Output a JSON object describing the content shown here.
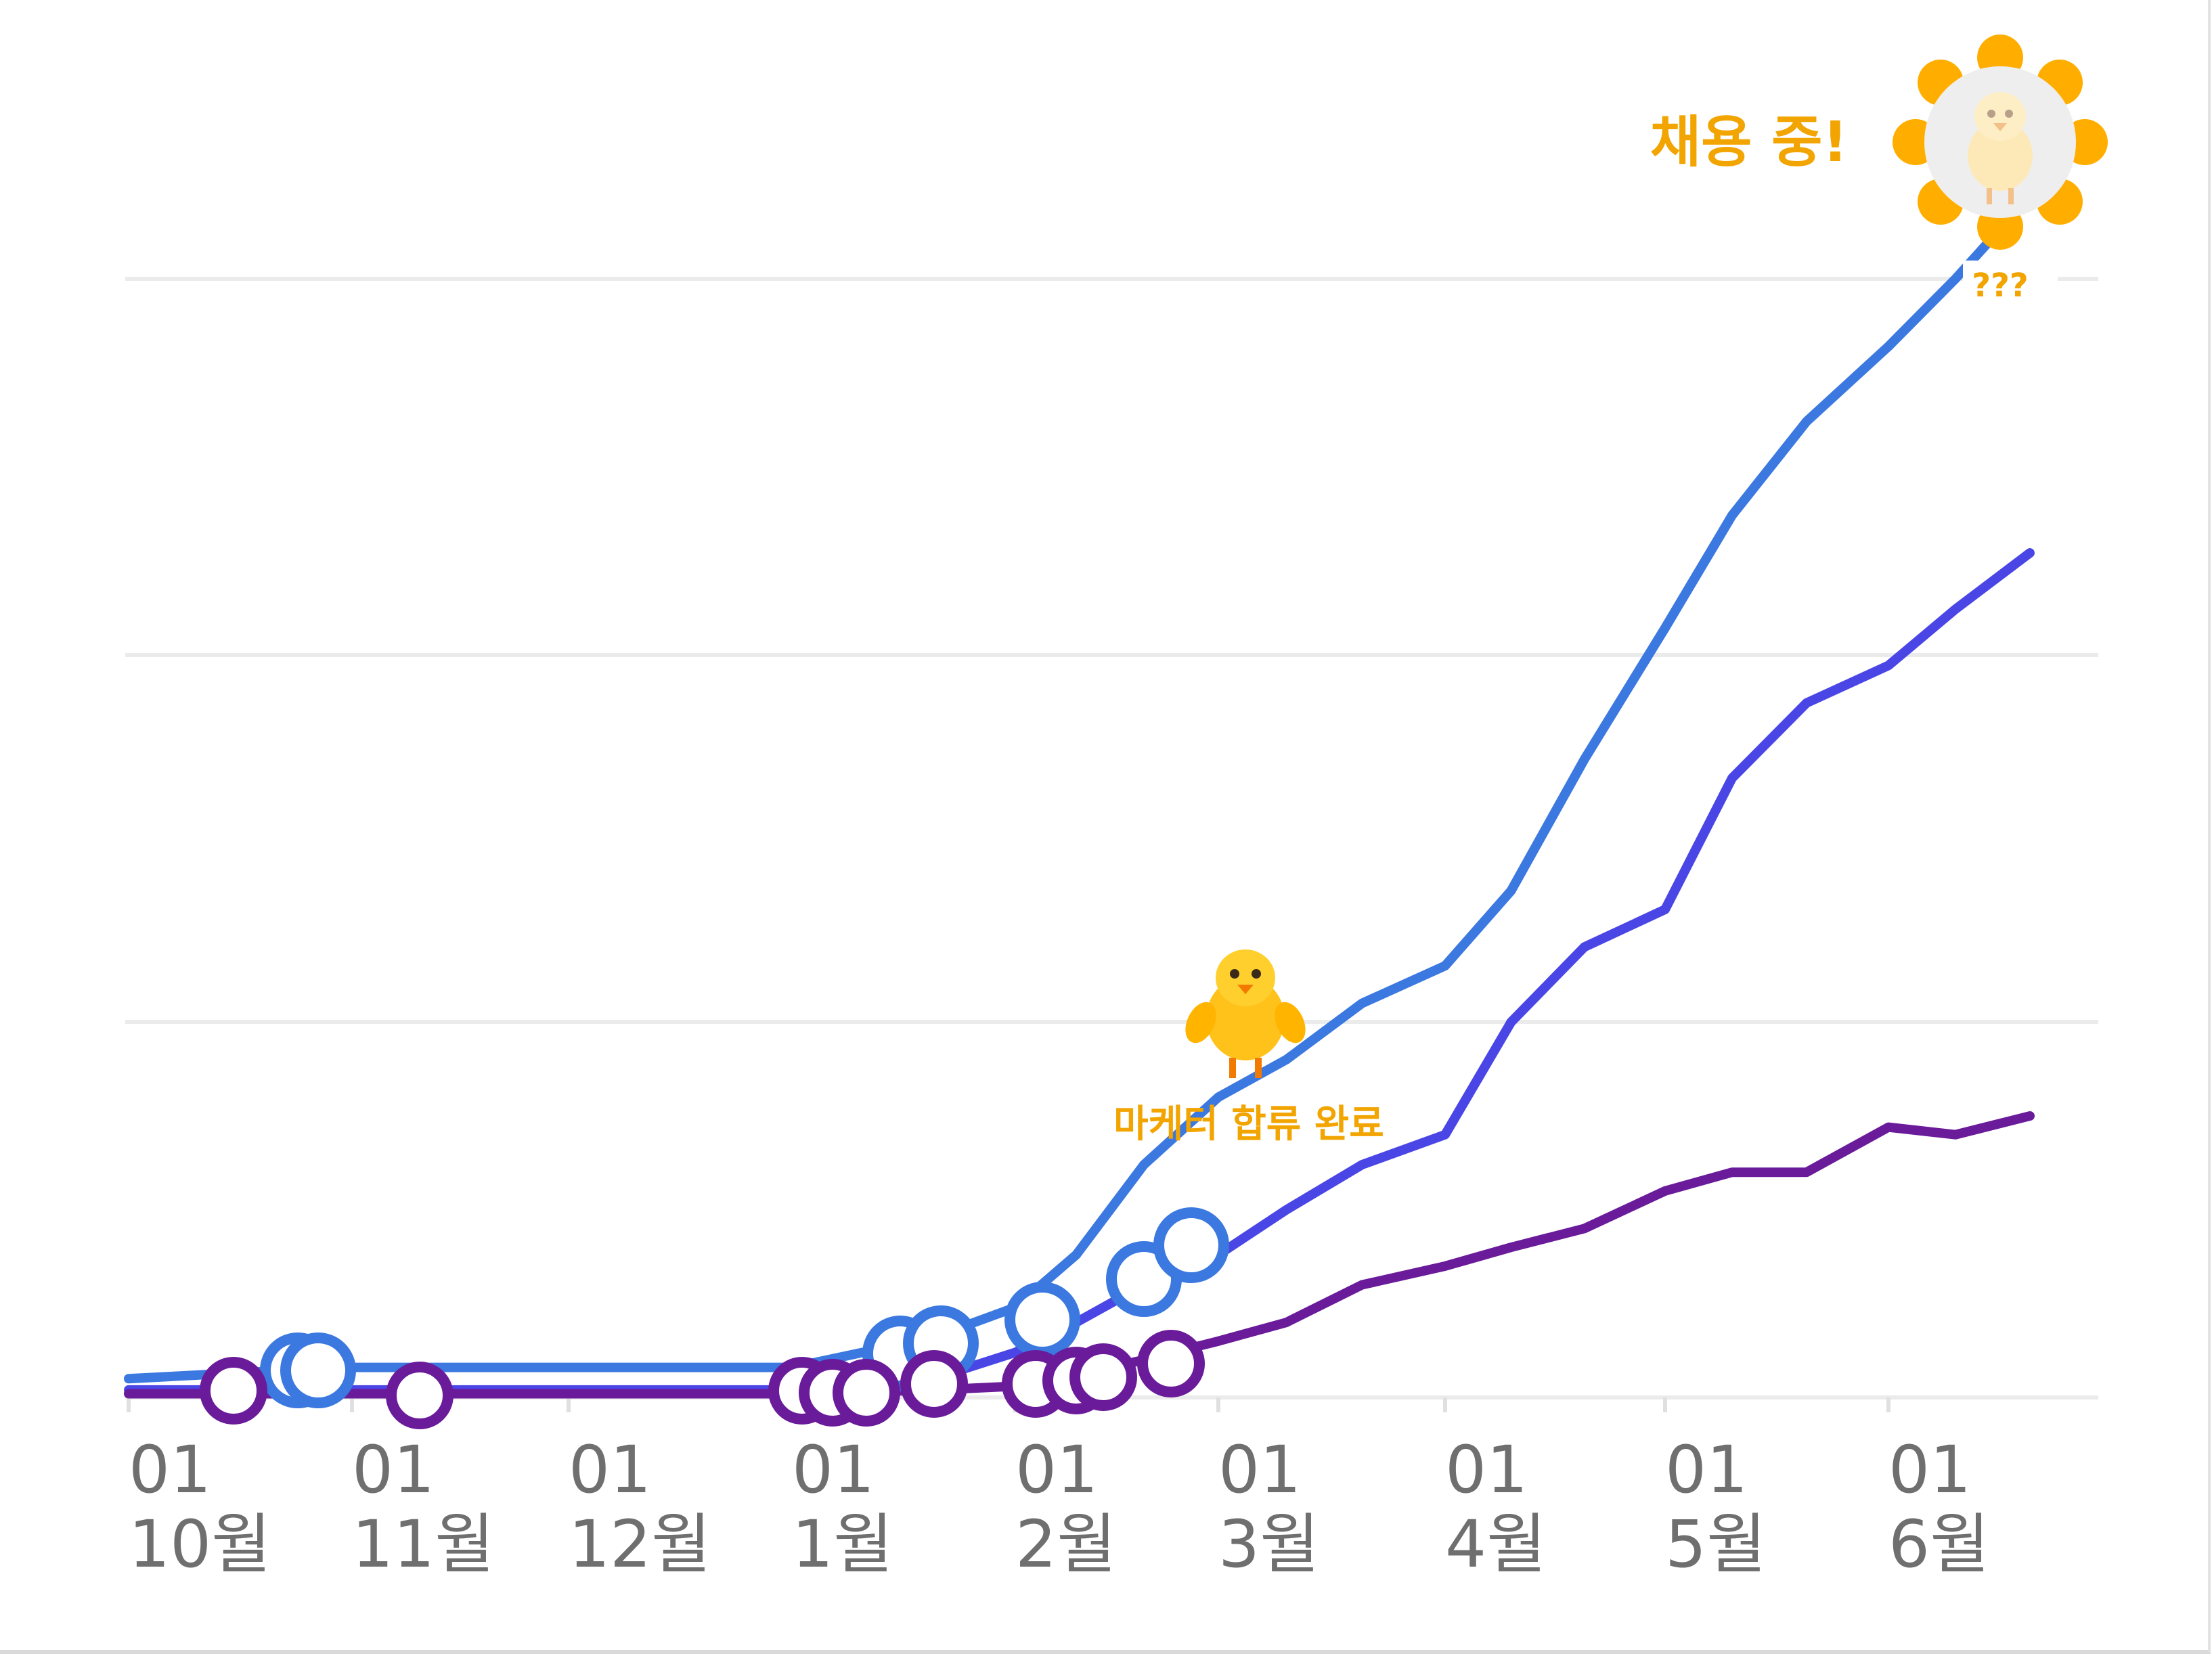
{
  "chart_data": {
    "type": "line",
    "x_ticks": [
      {
        "day": "01",
        "month": "10월"
      },
      {
        "day": "01",
        "month": "11월"
      },
      {
        "day": "01",
        "month": "12월"
      },
      {
        "day": "01",
        "month": "1월"
      },
      {
        "day": "01",
        "month": "2월"
      },
      {
        "day": "01",
        "month": "3월"
      },
      {
        "day": "01",
        "month": "4월"
      },
      {
        "day": "01",
        "month": "5월"
      },
      {
        "day": "01",
        "month": "6월"
      }
    ],
    "grid": true,
    "legend": "none",
    "ylim": [
      0,
      3
    ],
    "series": [
      {
        "color": "#3b78e0",
        "x": [
          "10-01",
          "10-20",
          "11-01",
          "11-15",
          "12-01",
          "12-15",
          "01-01",
          "01-20",
          "02-01",
          "02-10",
          "02-20",
          "03-01",
          "03-10",
          "03-20",
          "04-01",
          "04-10",
          "04-20",
          "05-01",
          "05-10",
          "05-20",
          "06-01",
          "06-10",
          "06-20"
        ],
        "y": [
          0.05,
          0.07,
          0.08,
          0.08,
          0.08,
          0.08,
          0.08,
          0.16,
          0.24,
          0.38,
          0.62,
          0.8,
          0.9,
          1.05,
          1.15,
          1.35,
          1.7,
          2.05,
          2.35,
          2.6,
          2.8,
          2.98,
          3.2
        ]
      },
      {
        "color": "#4a46e6",
        "x": [
          "10-01",
          "10-20",
          "11-01",
          "11-15",
          "12-01",
          "12-15",
          "01-01",
          "01-20",
          "02-01",
          "02-10",
          "02-20",
          "03-01",
          "03-10",
          "03-20",
          "04-01",
          "04-10",
          "04-20",
          "05-01",
          "05-10",
          "05-20",
          "06-01",
          "06-10",
          "06-20"
        ],
        "y": [
          0.02,
          0.02,
          0.02,
          0.02,
          0.02,
          0.02,
          0.02,
          0.05,
          0.12,
          0.2,
          0.3,
          0.38,
          0.5,
          0.62,
          0.7,
          1.0,
          1.2,
          1.3,
          1.65,
          1.85,
          1.95,
          2.1,
          2.25
        ]
      },
      {
        "color": "#6a1b9a",
        "x": [
          "10-01",
          "10-20",
          "11-01",
          "11-15",
          "12-01",
          "12-15",
          "01-01",
          "01-20",
          "02-01",
          "02-10",
          "02-20",
          "03-01",
          "03-10",
          "03-20",
          "04-01",
          "04-10",
          "04-20",
          "05-01",
          "05-10",
          "05-20",
          "06-01",
          "06-10",
          "06-20"
        ],
        "y": [
          0.01,
          0.01,
          0.01,
          0.01,
          0.01,
          0.01,
          0.01,
          0.02,
          0.03,
          0.06,
          0.1,
          0.15,
          0.2,
          0.3,
          0.35,
          0.4,
          0.45,
          0.55,
          0.6,
          0.6,
          0.72,
          0.7,
          0.75
        ]
      }
    ],
    "annotations": {
      "hiring_label": "채용 중!",
      "unknown_label": "???",
      "joined_label": "마케터 합류 완료"
    }
  }
}
